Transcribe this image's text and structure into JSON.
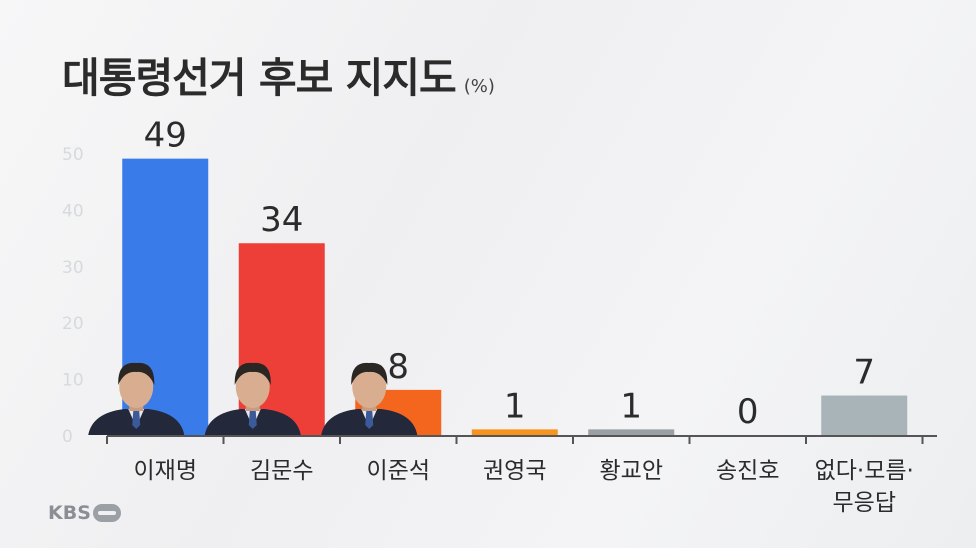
{
  "header": {
    "title": "대통령선거 후보 지지도",
    "unit": "(%)"
  },
  "logo": {
    "text": "KBS"
  },
  "colors": {
    "lee_jae_myung": "#3a7bea",
    "kim_moon_soo": "#ee3e38",
    "lee_jun_seok": "#f4661d",
    "kwon_young_guk": "#f7941d",
    "hwang_kyo_ahn": "#9aa0a6",
    "song_jin_ho": "#9aa0a6",
    "none_unknown": "#a9b4b8",
    "axis": "#555555",
    "gridlabel": "#d6d9dd",
    "text": "#2b2b2b"
  },
  "chart_data": {
    "type": "bar",
    "categories": [
      "이재명",
      "김문수",
      "이준석",
      "권영국",
      "황교안",
      "송진호",
      "없다·모름·\n무응답"
    ],
    "values": [
      49,
      34,
      8,
      1,
      1,
      0,
      7
    ],
    "data_labels": [
      "49",
      "34",
      "8",
      "1",
      "1",
      "0",
      "7"
    ],
    "yticks": [
      0,
      10,
      20,
      30,
      40,
      50
    ],
    "ylim": [
      0,
      50
    ],
    "title": "대통령선거 후보 지지도",
    "unit": "(%)",
    "xlabel": "",
    "ylabel": "",
    "grid": false,
    "portraits": [
      true,
      true,
      true,
      false,
      false,
      false,
      false
    ]
  }
}
